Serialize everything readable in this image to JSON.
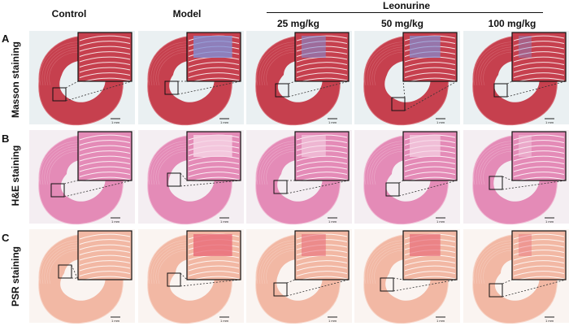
{
  "columns": {
    "control": "Control",
    "model": "Model",
    "dose_25": "25 mg/kg",
    "dose_50": "50 mg/kg",
    "dose_100": "100 mg/kg"
  },
  "group": {
    "leonurine": "Leonurine"
  },
  "rows": [
    {
      "letter": "A",
      "label": "Masson staining",
      "key": "masson"
    },
    {
      "letter": "B",
      "label": "H&E staining",
      "key": "he"
    },
    {
      "letter": "C",
      "label": "PSR staining",
      "key": "psr"
    }
  ],
  "scale_bar": "1 mm",
  "stain_colors": {
    "masson": {
      "tissue": "#c6404e",
      "tissue_light": "#d9707a",
      "fibrosis": "#7f8fd6",
      "bg": "#eaf0f2"
    },
    "he": {
      "tissue": "#e48bb7",
      "tissue_light": "#f0b6d2",
      "fibrosis": "#f6d6e6",
      "bg": "#f4eef2"
    },
    "psr": {
      "tissue": "#f2b8a4",
      "tissue_light": "#f7d2c4",
      "fibrosis": "#e86a78",
      "bg": "#faf4f1"
    }
  }
}
